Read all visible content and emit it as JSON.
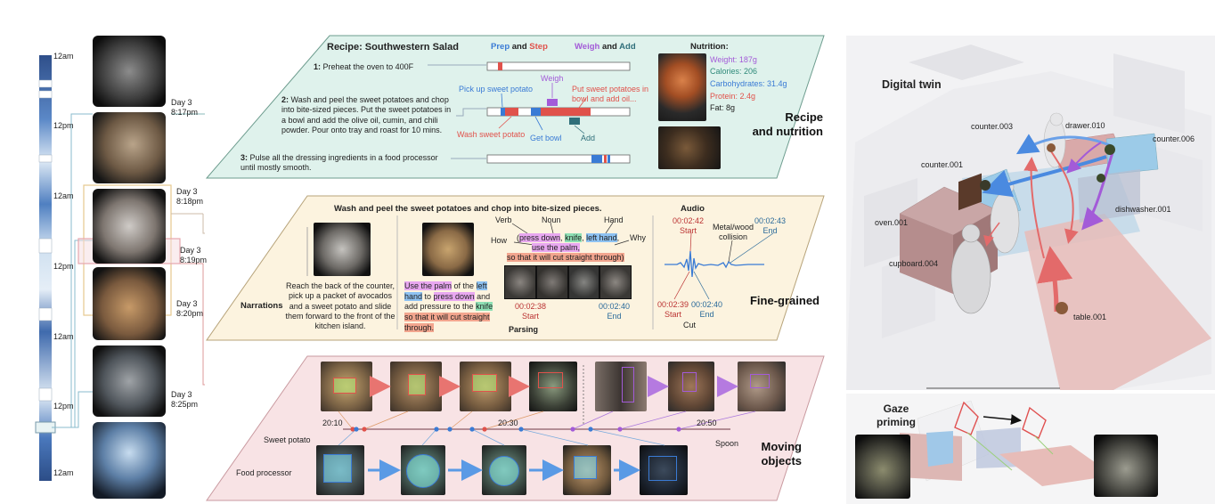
{
  "timeline": {
    "labels": [
      "12am",
      "12pm",
      "12am",
      "12pm",
      "12am",
      "12pm",
      "12am"
    ],
    "day_labels": [
      {
        "day": "Day 3",
        "time": "8:17pm"
      },
      {
        "day": "Day 3",
        "time": "8:18pm"
      },
      {
        "day": "Day 3",
        "time": "8:19pm"
      },
      {
        "day": "Day 3",
        "time": "8:20pm"
      },
      {
        "day": "Day 3",
        "time": "8:25pm"
      }
    ]
  },
  "recipe": {
    "title": "Recipe: Southwestern Salad",
    "legend": {
      "prep": "Prep",
      "and1": "and",
      "step": "Step",
      "weigh": "Weigh",
      "and2": "and",
      "add": "Add"
    },
    "steps": [
      {
        "num": "1:",
        "text": "Preheat the oven to 400F"
      },
      {
        "num": "2:",
        "text": "Wash and peel the sweet potatoes and chop into bite-sized pieces. Put the sweet potatoes in a bowl and add the olive oil, cumin, and chili powder.  Pour onto tray and roast for 10 mins."
      },
      {
        "num": "3:",
        "text": "Pulse all the dressing ingredients in a food processor until mostly smooth."
      }
    ],
    "callouts": {
      "pick_up": "Pick up sweet potato",
      "weigh": "Weigh",
      "put": "Put sweet potatoes in bowl and add oil...",
      "wash": "Wash sweet potato",
      "get_bowl": "Get bowl",
      "add": "Add"
    },
    "nutrition": {
      "heading": "Nutrition:",
      "weight": "Weight: 187g",
      "calories": "Calories: 206",
      "carbs": "Carbohydrates: 31.4g",
      "protein": "Protein: 2.4g",
      "fat": "Fat: 8g"
    },
    "section_title_1": "Recipe",
    "section_title_2": "and nutrition"
  },
  "finegrained": {
    "header": "Wash and peel the sweet potatoes and chop into bite-sized pieces.",
    "narrations_label": "Narrations",
    "narration_text": "Reach the back of the counter, pick up a packet of avocados and a sweet potato and slide them forward to the front of the kitchen island.",
    "parse": {
      "verb": "Verb",
      "noun": "Noun",
      "hand": "Hand",
      "how": "How",
      "why": "Why",
      "press": "press down",
      "knife": "knife",
      "left_hand": "left hand",
      "comma": ",",
      "use_palm": "use the palm,",
      "so_that": "so that it will cut straight through)",
      "open_paren": "("
    },
    "sentence": {
      "p1": "Use the palm",
      "p2": " of the ",
      "p3": "left",
      "p4": "hand",
      "p5": " to ",
      "p6": "press down",
      "p7": " and add pressure to the ",
      "p8": "knife",
      "p9": "so that it will cut straight",
      "p10": "through."
    },
    "parse_times": {
      "t1": "00:02:38",
      "t1l": "Start",
      "t2": "00:02:40",
      "t2l": "End",
      "label": "Parsing"
    },
    "audio": {
      "title": "Audio",
      "t1": "00:02:42",
      "t1l": "Start",
      "event": "Metal/wood collision",
      "t2": "00:02:43",
      "t2l": "End",
      "t3": "00:02:39",
      "t3l": "Start",
      "t4": "00:02:40",
      "t4l": "End",
      "cut": "Cut"
    },
    "section_title": "Fine-grained"
  },
  "moving": {
    "sweet_potato": "Sweet potato",
    "food_processor": "Food processor",
    "spoon": "Spoon",
    "times": [
      "20:10",
      "20:30",
      "20:50"
    ],
    "section_title_1": "Moving",
    "section_title_2": "objects"
  },
  "twin": {
    "title": "Digital twin",
    "labels": {
      "counter003": "counter.003",
      "drawer010": "drawer.010",
      "counter006": "counter.006",
      "counter001": "counter.001",
      "dishwasher001": "dishwasher.001",
      "oven001": "oven.001",
      "cupboard004": "cupboard.004",
      "table001": "table.001"
    },
    "gaze_1": "Gaze",
    "gaze_2": "priming"
  },
  "colors": {
    "prep": "#3a7bd5",
    "step": "#e0524b",
    "weigh": "#a35bd8",
    "add": "#2f6f7a",
    "recipe_bg": "#dff2ec",
    "fine_bg": "#fcf3df",
    "moving_bg": "#f8e3e5"
  }
}
